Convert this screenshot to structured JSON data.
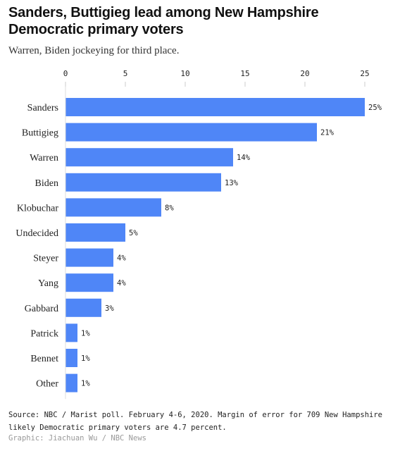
{
  "header": {
    "title": "Sanders, Buttigieg lead among New Hampshire Democratic primary voters",
    "subtitle": "Warren, Biden jockeying for third place."
  },
  "footer": {
    "source": "Source: NBC / Marist poll. February 4-6, 2020. Margin of error for 709 New Hampshire likely Democratic primary voters are 4.7 percent.",
    "credit": "Graphic: Jiachuan Wu / NBC News"
  },
  "colors": {
    "bar": "#4f86f7"
  },
  "chart_data": {
    "type": "bar",
    "orientation": "horizontal",
    "title": "Sanders, Buttigieg lead among New Hampshire Democratic primary voters",
    "subtitle": "Warren, Biden jockeying for third place.",
    "categories": [
      "Sanders",
      "Buttigieg",
      "Warren",
      "Biden",
      "Klobuchar",
      "Undecided",
      "Steyer",
      "Yang",
      "Gabbard",
      "Patrick",
      "Bennet",
      "Other"
    ],
    "values": [
      25,
      21,
      14,
      13,
      8,
      5,
      4,
      4,
      3,
      1,
      1,
      1
    ],
    "data_labels": [
      "25%",
      "21%",
      "14%",
      "13%",
      "8%",
      "5%",
      "4%",
      "4%",
      "3%",
      "1%",
      "1%",
      "1%"
    ],
    "xticks": [
      0,
      5,
      10,
      15,
      20,
      25
    ],
    "xlim": [
      0,
      25
    ],
    "axis_position": "top",
    "grid": false
  }
}
